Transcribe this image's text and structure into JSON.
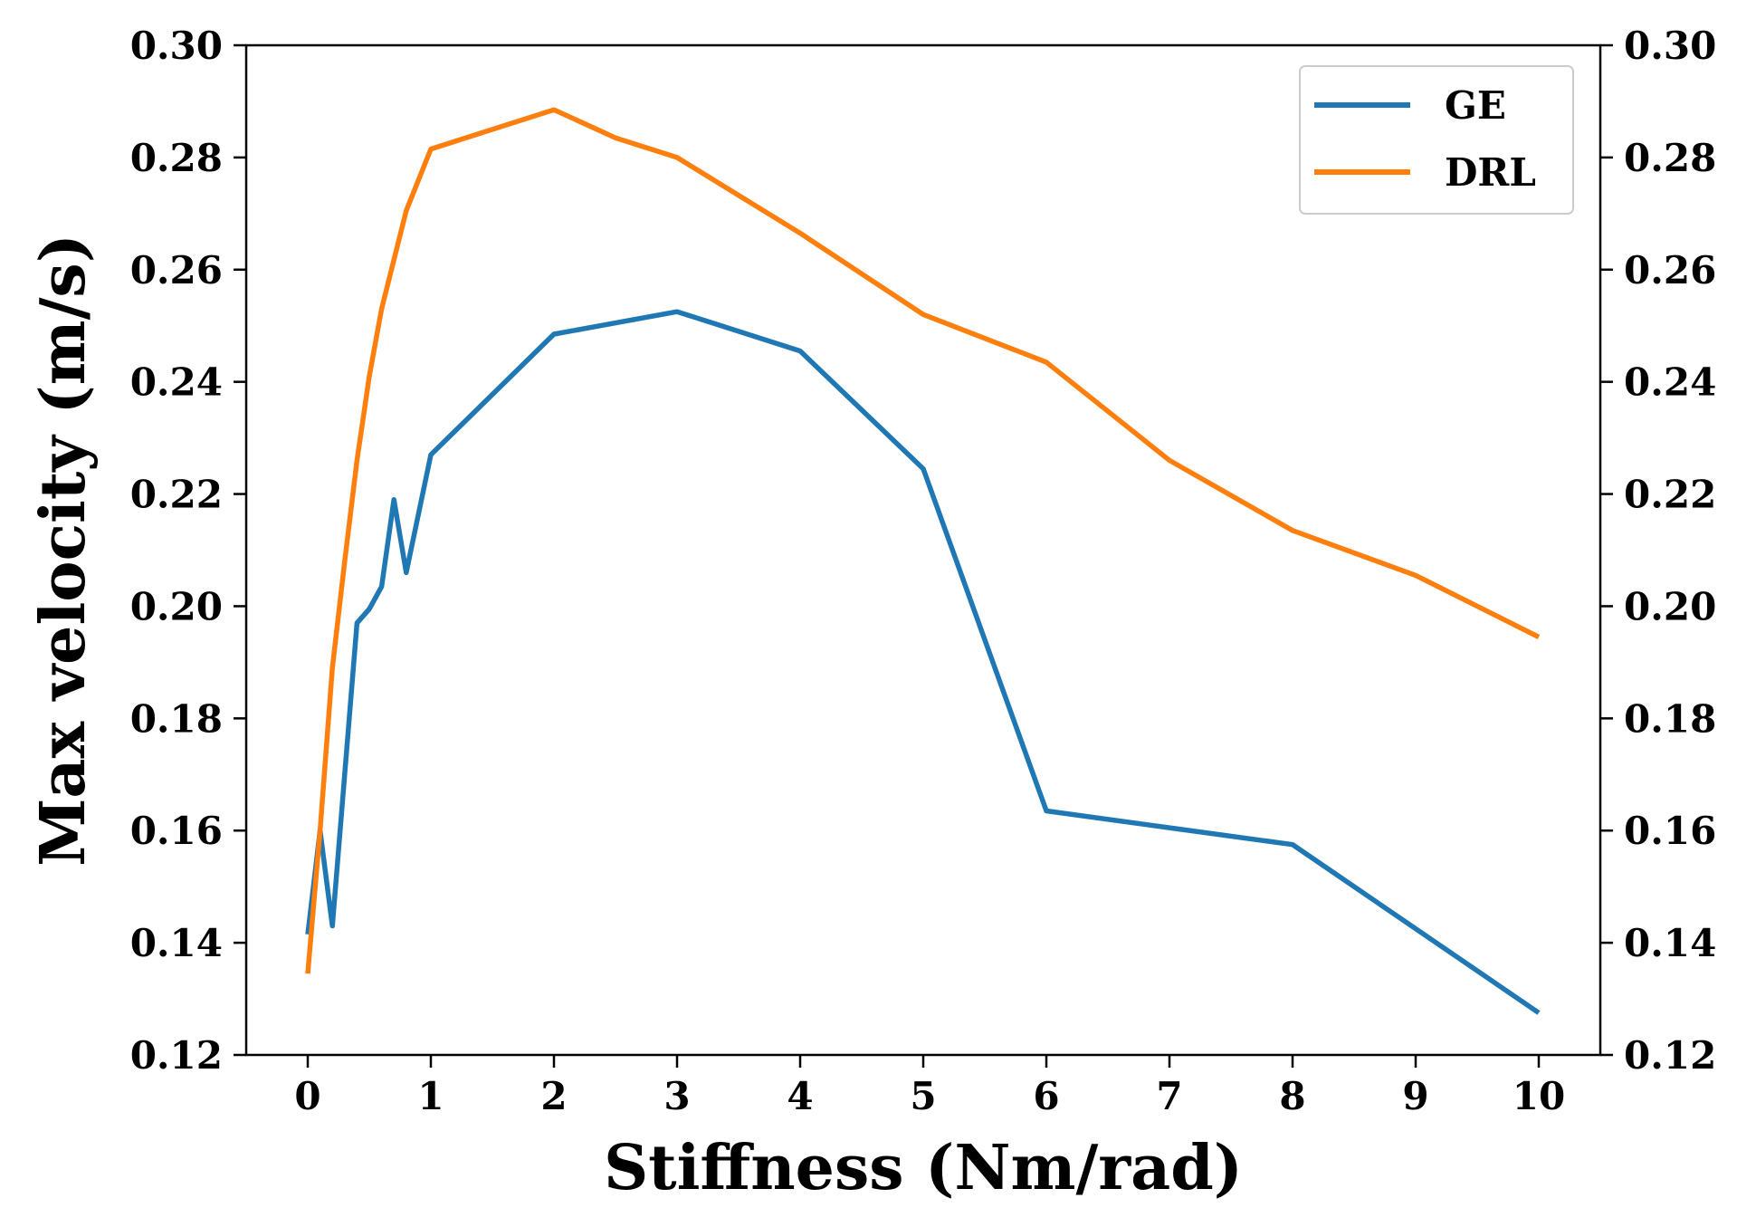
{
  "chart_data": {
    "type": "line",
    "xlabel": "Stiffness (Nm/rad)",
    "ylabel": "Max velocity (m/s)",
    "xlim": [
      -0.5,
      10.5
    ],
    "ylim": [
      0.12,
      0.3
    ],
    "xticks": [
      "0",
      "1",
      "2",
      "3",
      "4",
      "5",
      "6",
      "7",
      "8",
      "9",
      "10"
    ],
    "yticks": [
      "0.12",
      "0.14",
      "0.16",
      "0.18",
      "0.20",
      "0.22",
      "0.24",
      "0.26",
      "0.28",
      "0.30"
    ],
    "right_yticks": [
      "0.12",
      "0.14",
      "0.16",
      "0.18",
      "0.20",
      "0.22",
      "0.24",
      "0.26",
      "0.28",
      "0.30"
    ],
    "legend_position": "top-right",
    "grid": false,
    "series": [
      {
        "name": "GE",
        "color": "#1f77b4",
        "x": [
          0,
          0.1,
          0.2,
          0.4,
          0.5,
          0.6,
          0.7,
          0.8,
          1,
          2,
          3,
          4,
          5,
          6,
          7,
          8,
          9,
          10
        ],
        "y": [
          0.1415,
          0.16,
          0.143,
          0.197,
          0.1995,
          0.2035,
          0.219,
          0.206,
          0.227,
          0.2485,
          0.2525,
          0.2455,
          0.2245,
          0.1635,
          0.1605,
          0.1575,
          0.1425,
          0.1275
        ]
      },
      {
        "name": "DRL",
        "color": "#ff7f0e",
        "x": [
          0,
          0.1,
          0.2,
          0.3,
          0.4,
          0.5,
          0.6,
          0.8,
          1,
          2,
          2.5,
          3,
          4,
          5,
          6,
          7,
          8,
          9,
          10
        ],
        "y": [
          0.1345,
          0.16,
          0.189,
          0.208,
          0.226,
          0.241,
          0.253,
          0.2705,
          0.2815,
          0.2885,
          0.2835,
          0.28,
          0.2665,
          0.252,
          0.2435,
          0.226,
          0.2135,
          0.2055,
          0.1945
        ]
      }
    ]
  }
}
